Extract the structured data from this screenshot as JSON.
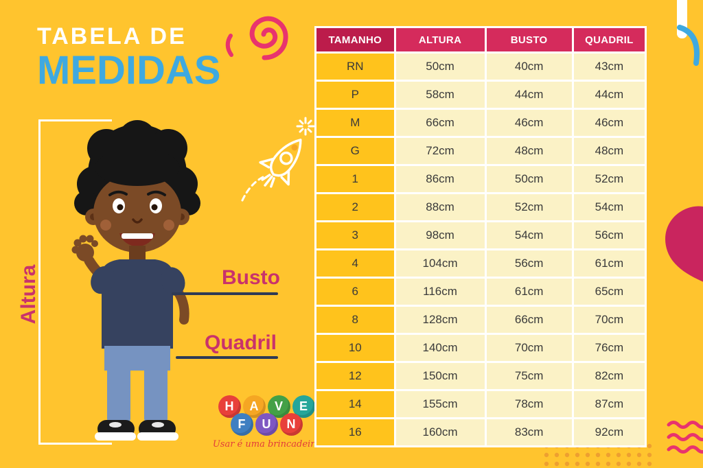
{
  "title": {
    "line1": "TABELA DE",
    "line2": "MEDIDAS"
  },
  "labels": {
    "altura": "Altura",
    "busto": "Busto",
    "quadril": "Quadril"
  },
  "logo": {
    "word1": [
      {
        "ch": "H",
        "color": "#E8403A"
      },
      {
        "ch": "A",
        "color": "#F5A623"
      },
      {
        "ch": "V",
        "color": "#43A047"
      },
      {
        "ch": "E",
        "color": "#26A69A"
      }
    ],
    "word2": [
      {
        "ch": "F",
        "color": "#3F7FC1"
      },
      {
        "ch": "U",
        "color": "#7E57C2"
      },
      {
        "ch": "N",
        "color": "#E8403A"
      }
    ],
    "tagline": "Usar é uma brincadeira"
  },
  "chart_data": {
    "type": "table",
    "title": "Tabela de Medidas",
    "columns": [
      "TAMANHO",
      "ALTURA",
      "BUSTO",
      "QUADRIL"
    ],
    "rows": [
      [
        "RN",
        "50cm",
        "40cm",
        "43cm"
      ],
      [
        "P",
        "58cm",
        "44cm",
        "44cm"
      ],
      [
        "M",
        "66cm",
        "46cm",
        "46cm"
      ],
      [
        "G",
        "72cm",
        "48cm",
        "48cm"
      ],
      [
        "1",
        "86cm",
        "50cm",
        "52cm"
      ],
      [
        "2",
        "88cm",
        "52cm",
        "54cm"
      ],
      [
        "3",
        "98cm",
        "54cm",
        "56cm"
      ],
      [
        "4",
        "104cm",
        "56cm",
        "61cm"
      ],
      [
        "6",
        "116cm",
        "61cm",
        "65cm"
      ],
      [
        "8",
        "128cm",
        "66cm",
        "70cm"
      ],
      [
        "10",
        "140cm",
        "70cm",
        "76cm"
      ],
      [
        "12",
        "150cm",
        "75cm",
        "82cm"
      ],
      [
        "14",
        "155cm",
        "78cm",
        "87cm"
      ],
      [
        "16",
        "160cm",
        "83cm",
        "92cm"
      ]
    ]
  },
  "colors": {
    "background": "#FFC42E",
    "title_blue": "#3FA9E0",
    "accent_pink": "#C9326B",
    "header_first": "#BC1C4B",
    "header": "#D52B5C",
    "size_cell": "#FFC31C",
    "data_cell": "#FBF2C6",
    "pointer_line": "#2E3A55",
    "doodle_pink": "#E8336E",
    "heart_pink": "#C9255E"
  }
}
